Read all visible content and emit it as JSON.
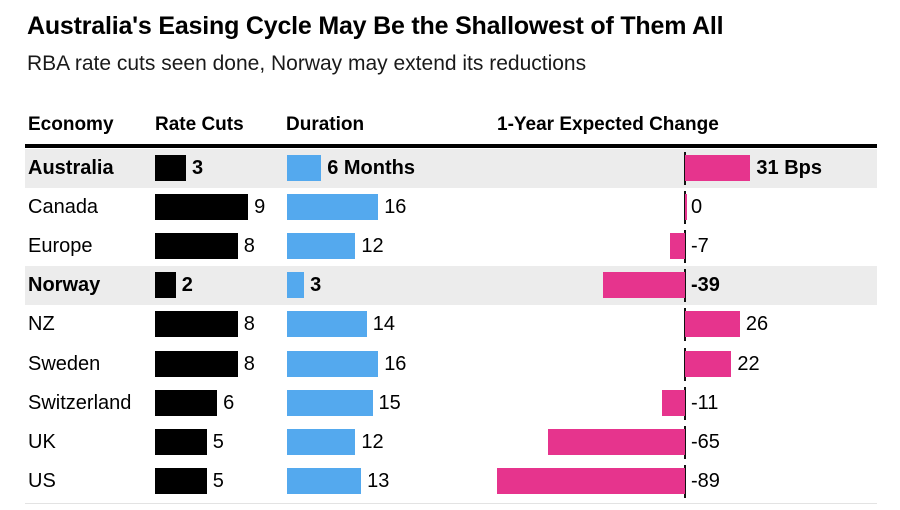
{
  "header": {
    "title": "Australia's Easing Cycle May Be the Shallowest of Them All",
    "subtitle": "RBA rate cuts seen done, Norway may extend its reductions"
  },
  "columns": {
    "economy": "Economy",
    "rate_cuts": "Rate Cuts",
    "duration": "Duration",
    "expected_change": "1-Year Expected Change"
  },
  "colors": {
    "rate_cuts_bar": "#000000",
    "duration_bar": "#54a9ee",
    "expected_change_bar": "#e6348d",
    "highlight_row_bg": "#ececec",
    "axis_line": "#111111"
  },
  "chart_data": {
    "type": "bar",
    "title": "Australia's Easing Cycle May Be the Shallowest of Them All",
    "subtitle": "RBA rate cuts seen done, Norway may extend its reductions",
    "categories": [
      "Australia",
      "Canada",
      "Europe",
      "Norway",
      "NZ",
      "Sweden",
      "Switzerland",
      "UK",
      "US"
    ],
    "series": [
      {
        "name": "Rate Cuts",
        "values": [
          3,
          9,
          8,
          2,
          8,
          8,
          6,
          5,
          5
        ]
      },
      {
        "name": "Duration",
        "values": [
          6,
          16,
          12,
          3,
          14,
          16,
          15,
          12,
          13
        ]
      },
      {
        "name": "1-Year Expected Change",
        "values": [
          31,
          0,
          -7,
          -39,
          26,
          22,
          -11,
          -65,
          -89
        ]
      }
    ],
    "layout_hints": {
      "orientation": "horizontal",
      "rate_cuts_max": 9,
      "duration_max": 16,
      "expected_change_range": [
        -89,
        31
      ],
      "zero_axis_column": "expected_change",
      "grid": false,
      "legend": "none"
    },
    "rows": [
      {
        "economy": "Australia",
        "rate_cuts": 3,
        "rate_cuts_label": "3",
        "duration": 6,
        "duration_label": "6 Months",
        "change": 31,
        "change_label": "31 Bps",
        "highlight": true
      },
      {
        "economy": "Canada",
        "rate_cuts": 9,
        "rate_cuts_label": "9",
        "duration": 16,
        "duration_label": "16",
        "change": 0,
        "change_label": "0",
        "highlight": false
      },
      {
        "economy": "Europe",
        "rate_cuts": 8,
        "rate_cuts_label": "8",
        "duration": 12,
        "duration_label": "12",
        "change": -7,
        "change_label": "-7",
        "highlight": false
      },
      {
        "economy": "Norway",
        "rate_cuts": 2,
        "rate_cuts_label": "2",
        "duration": 3,
        "duration_label": "3",
        "change": -39,
        "change_label": "-39",
        "highlight": true
      },
      {
        "economy": "NZ",
        "rate_cuts": 8,
        "rate_cuts_label": "8",
        "duration": 14,
        "duration_label": "14",
        "change": 26,
        "change_label": "26",
        "highlight": false
      },
      {
        "economy": "Sweden",
        "rate_cuts": 8,
        "rate_cuts_label": "8",
        "duration": 16,
        "duration_label": "16",
        "change": 22,
        "change_label": "22",
        "highlight": false
      },
      {
        "economy": "Switzerland",
        "rate_cuts": 6,
        "rate_cuts_label": "6",
        "duration": 15,
        "duration_label": "15",
        "change": -11,
        "change_label": "-11",
        "highlight": false
      },
      {
        "economy": "UK",
        "rate_cuts": 5,
        "rate_cuts_label": "5",
        "duration": 12,
        "duration_label": "12",
        "change": -65,
        "change_label": "-65",
        "highlight": false
      },
      {
        "economy": "US",
        "rate_cuts": 5,
        "rate_cuts_label": "5",
        "duration": 13,
        "duration_label": "13",
        "change": -89,
        "change_label": "-89",
        "highlight": false
      }
    ]
  }
}
